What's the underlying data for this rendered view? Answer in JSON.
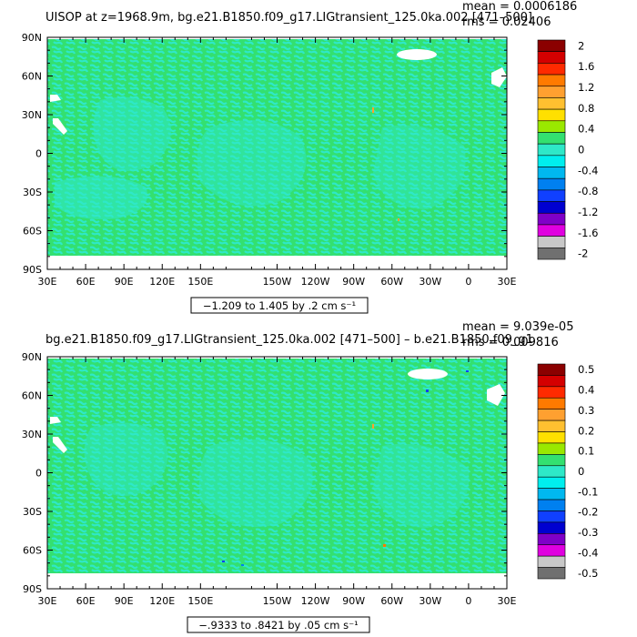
{
  "colors": {
    "ocean_base": "#33E070",
    "ocean_patch": "#2EE8C8",
    "land": "#FFFFFF",
    "frame": "#000000"
  },
  "chart_data": [
    {
      "type": "heatmap",
      "title": "UISOP at z=1968.9m, bg.e21.B1850.f09_g17.LIGtransient_125.0ka.002 [471–500]",
      "stats": {
        "mean": "mean = 0.0006186",
        "rms": "rms = 0.02406"
      },
      "range_label": "−1.209 to 1.405 by .2 cm s⁻¹",
      "xlabel": "",
      "ylabel": "",
      "x_ticks": [
        "30E",
        "60E",
        "90E",
        "120E",
        "150E",
        "150W",
        "120W",
        "90W",
        "60W",
        "30W",
        "0",
        "30E"
      ],
      "y_ticks": [
        "90N",
        "60N",
        "30N",
        "0",
        "30S",
        "60S",
        "90S"
      ],
      "xlim": [
        30,
        390
      ],
      "ylim": [
        -90,
        90
      ],
      "colorbar": {
        "ticks": [
          "2",
          "1.6",
          "1.2",
          "0.8",
          "0.4",
          "0",
          "-0.4",
          "-0.8",
          "-1.2",
          "-1.6",
          "-2"
        ],
        "colors": [
          "#8B0000",
          "#D40000",
          "#FF2A00",
          "#FF7A00",
          "#FFA030",
          "#FFC030",
          "#FFE000",
          "#9AE800",
          "#33E070",
          "#2EE8C8",
          "#00EEEE",
          "#00B8F0",
          "#0080F0",
          "#1040FF",
          "#0000D0",
          "#8000C8",
          "#E000E0",
          "#C8C8C8",
          "#707070"
        ]
      }
    },
    {
      "type": "heatmap",
      "title": "bg.e21.B1850.f09_g17.LIGtransient_125.0ka.002 [471–500] – b.e21.B1850.f09_g1",
      "stats": {
        "mean": "mean = 9.039e-05",
        "rms": "rms = 0.009816"
      },
      "range_label": "−.9333 to .8421 by .05 cm s⁻¹",
      "xlabel": "",
      "ylabel": "",
      "x_ticks": [
        "30E",
        "60E",
        "90E",
        "120E",
        "150E",
        "150W",
        "120W",
        "90W",
        "60W",
        "30W",
        "0",
        "30E"
      ],
      "y_ticks": [
        "90N",
        "60N",
        "30N",
        "0",
        "30S",
        "60S",
        "90S"
      ],
      "xlim": [
        30,
        390
      ],
      "ylim": [
        -90,
        90
      ],
      "colorbar": {
        "ticks": [
          "0.5",
          "0.4",
          "0.3",
          "0.2",
          "0.1",
          "0",
          "-0.1",
          "-0.2",
          "-0.3",
          "-0.4",
          "-0.5"
        ],
        "colors": [
          "#8B0000",
          "#D40000",
          "#FF2A00",
          "#FF7A00",
          "#FFA030",
          "#FFC030",
          "#FFE000",
          "#9AE800",
          "#33E070",
          "#2EE8C8",
          "#00EEEE",
          "#00B8F0",
          "#0080F0",
          "#1040FF",
          "#0000D0",
          "#8000C8",
          "#E000E0",
          "#C8C8C8",
          "#707070"
        ]
      }
    }
  ]
}
